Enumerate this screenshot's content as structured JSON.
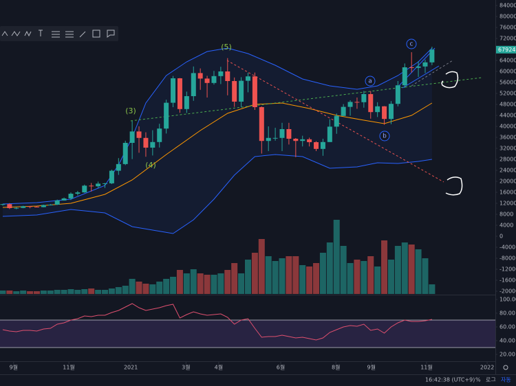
{
  "chart_data": {
    "type": "candlestick",
    "xlim": [
      -0.4,
      72.3
    ],
    "xticks": [
      {
        "value": 1.6,
        "label": "9월"
      },
      {
        "value": 9.7,
        "label": "11월"
      },
      {
        "value": 18.8,
        "label": "2021"
      },
      {
        "value": 26.9,
        "label": "3월"
      },
      {
        "value": 31.7,
        "label": "4월"
      },
      {
        "value": 40.8,
        "label": "6월"
      },
      {
        "value": 48.9,
        "label": "8월"
      },
      {
        "value": 54.1,
        "label": "9월"
      },
      {
        "value": 62.2,
        "label": "11월"
      },
      {
        "value": 71.1,
        "label": "2022"
      }
    ],
    "ylim": [
      -21000,
      86000
    ],
    "yticks": [
      84000,
      80000,
      76000,
      72000,
      68000,
      64000,
      60000,
      56000,
      52000,
      48000,
      44000,
      40000,
      36000,
      32000,
      28000,
      24000,
      20000,
      16000,
      12000,
      8000,
      4000,
      0,
      -4000,
      -8000,
      -12000,
      -16000,
      -20000
    ],
    "up_color": "#26a69a",
    "down_color": "#ef5350",
    "open": [
      11650,
      11700,
      10250,
      10330,
      10920,
      10770,
      10600,
      11370,
      11500,
      13030,
      13780,
      15480,
      15960,
      18420,
      18190,
      19150,
      19270,
      23860,
      26280,
      34000,
      38150,
      35800,
      32260,
      34300,
      39200,
      48600,
      57500,
      46300,
      51000,
      59400,
      57400,
      55800,
      58300,
      60000,
      56500,
      49000,
      56600,
      58200,
      47000,
      34700,
      35800,
      35800,
      39000,
      35500,
      34700,
      35300,
      34250,
      31800,
      34300,
      39900,
      43800,
      47100,
      48900,
      48800,
      51750,
      45200,
      47300,
      42700,
      48200,
      54950,
      61500,
      61300,
      61800,
      63300
    ],
    "high": [
      11800,
      12050,
      10600,
      11100,
      10990,
      10950,
      11500,
      11720,
      13350,
      14100,
      15950,
      16500,
      18800,
      19400,
      19900,
      19420,
      24250,
      28450,
      34780,
      41950,
      40000,
      37850,
      38600,
      40950,
      49700,
      58350,
      57600,
      52650,
      61800,
      61100,
      58400,
      60200,
      61700,
      64850,
      57800,
      57900,
      59500,
      59600,
      47250,
      40000,
      39500,
      41300,
      41300,
      35750,
      36600,
      35900,
      34600,
      35500,
      42600,
      44700,
      48100,
      49500,
      50500,
      52900,
      52850,
      48800,
      47400,
      49200,
      56500,
      62900,
      67000,
      63700,
      64300,
      69000
    ],
    "low": [
      11150,
      9900,
      9850,
      10200,
      10200,
      10500,
      10550,
      11200,
      11400,
      12980,
      13200,
      14850,
      15800,
      16300,
      17600,
      17600,
      19000,
      22350,
      25900,
      28100,
      30400,
      28950,
      29400,
      32300,
      37400,
      47000,
      44950,
      44900,
      49300,
      53300,
      50500,
      55200,
      55400,
      51300,
      47100,
      47000,
      52400,
      46000,
      30100,
      31000,
      34800,
      31000,
      33400,
      28800,
      32700,
      32700,
      31000,
      29300,
      34300,
      37300,
      43800,
      43900,
      46400,
      46800,
      42800,
      43400,
      40600,
      40800,
      47300,
      54000,
      59600,
      58000,
      59400,
      62300
    ],
    "close": [
      11700,
      10250,
      10330,
      10920,
      10770,
      10600,
      11370,
      11500,
      13030,
      13780,
      15480,
      15960,
      18420,
      18190,
      19150,
      19270,
      23860,
      26280,
      34000,
      38150,
      35800,
      32260,
      34300,
      39200,
      48600,
      57500,
      46300,
      51000,
      59400,
      57400,
      55800,
      58300,
      60000,
      56500,
      49000,
      56600,
      58200,
      47000,
      34700,
      35800,
      35800,
      39000,
      35500,
      34700,
      35300,
      34250,
      31800,
      34300,
      39900,
      43800,
      47100,
      48900,
      48800,
      51750,
      45200,
      47300,
      42700,
      48200,
      54950,
      61500,
      61300,
      61800,
      63300,
      67924
    ],
    "volume": [
      5,
      5,
      4,
      5,
      4,
      4,
      5,
      5,
      6,
      6,
      7,
      6,
      7,
      8,
      6,
      6,
      8,
      10,
      12,
      22,
      18,
      15,
      14,
      18,
      22,
      25,
      35,
      30,
      36,
      30,
      28,
      28,
      30,
      35,
      45,
      30,
      50,
      60,
      80,
      55,
      48,
      52,
      55,
      55,
      42,
      40,
      45,
      60,
      75,
      108,
      70,
      45,
      50,
      48,
      55,
      40,
      78,
      50,
      70,
      75,
      72,
      65,
      52,
      14
    ],
    "bands": [
      {
        "color": "#2962ff",
        "x": [
          0,
          5,
          10,
          15,
          17,
          19,
          21,
          24,
          27,
          30,
          33,
          36,
          40,
          44,
          48,
          52,
          55,
          58,
          61,
          63
        ],
        "values": [
          11750,
          12250,
          13500,
          18500,
          26000,
          36000,
          48500,
          58500,
          63500,
          67250,
          68500,
          66500,
          62250,
          57250,
          54750,
          53500,
          54750,
          58500,
          63500,
          68500
        ]
      },
      {
        "color": "#ff9800",
        "x": [
          0,
          5,
          10,
          15,
          19,
          24,
          29,
          33,
          37,
          41,
          45,
          49,
          53,
          56,
          60,
          63
        ],
        "values": [
          10500,
          11000,
          12000,
          15250,
          20500,
          29750,
          38500,
          44750,
          48000,
          48500,
          46500,
          44000,
          42250,
          41000,
          44000,
          48500
        ]
      },
      {
        "color": "#2962ff",
        "x": [
          0,
          5,
          10,
          15,
          19,
          22,
          25,
          28,
          31,
          34,
          37,
          40,
          44,
          48,
          52,
          55,
          58,
          61,
          63
        ],
        "values": [
          7250,
          7750,
          9750,
          8500,
          3500,
          2250,
          1000,
          6000,
          13500,
          22250,
          29000,
          29750,
          29000,
          24750,
          25250,
          26750,
          26500,
          27250,
          28000
        ]
      }
    ],
    "rsi": {
      "color": "#e0506f",
      "ylim": [
        11,
        106
      ],
      "levels": [
        30,
        70
      ],
      "yticks": [
        {
          "value": 100,
          "label": "100.00"
        },
        {
          "value": 80,
          "label": "80.00"
        },
        {
          "value": 60,
          "label": "60.00"
        },
        {
          "value": 40,
          "label": "40.00"
        },
        {
          "value": 20,
          "label": "20.00"
        }
      ],
      "values": [
        56,
        54,
        53,
        55,
        55,
        54,
        57,
        58,
        64,
        66,
        70,
        72,
        76,
        75,
        77,
        77,
        81,
        84,
        89,
        94,
        88,
        84,
        86,
        88,
        91,
        93,
        73,
        78,
        82,
        79,
        77,
        78,
        79,
        74,
        64,
        70,
        72,
        58,
        45,
        46,
        46,
        48,
        46,
        44,
        45,
        43,
        41,
        44,
        52,
        56,
        60,
        62,
        61,
        64,
        55,
        57,
        51,
        60,
        66,
        70,
        68,
        68,
        69,
        71
      ]
    },
    "annotations": [
      "(3)",
      "(4)",
      "(5)",
      "a",
      "b",
      "c"
    ],
    "status": {
      "time": "16:42:38 (UTC+9)",
      "percent": "%",
      "log": "로그",
      "auto": "자동"
    }
  }
}
